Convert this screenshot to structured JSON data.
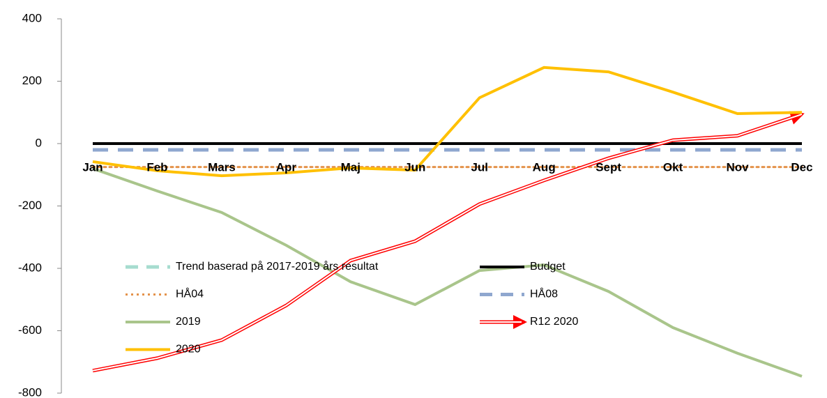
{
  "chart_data": {
    "type": "line",
    "categories": [
      "Jan",
      "Feb",
      "Mars",
      "Apr",
      "Maj",
      "Jun",
      "Jul",
      "Aug",
      "Sept",
      "Okt",
      "Nov",
      "Dec"
    ],
    "ylim": [
      -800,
      400
    ],
    "yticks": [
      -800,
      -600,
      -400,
      -200,
      0,
      200,
      400
    ],
    "series": [
      {
        "name": "Trend baserad på 2017-2019 års resultat",
        "color": "#a6dccf",
        "style": "dashed",
        "values": [
          null,
          null,
          null,
          null,
          null,
          null,
          null,
          null,
          null,
          null,
          null,
          null
        ]
      },
      {
        "name": "Budget",
        "color": "#000000",
        "style": "solid",
        "values": [
          0,
          0,
          0,
          0,
          0,
          0,
          0,
          0,
          0,
          0,
          0,
          0
        ]
      },
      {
        "name": "HÅ04",
        "color": "#e4924a",
        "style": "dotted",
        "values": [
          -75,
          -75,
          -75,
          -75,
          -75,
          -75,
          -75,
          -75,
          -75,
          -75,
          -75,
          -75
        ]
      },
      {
        "name": "HÅ08",
        "color": "#8fa7cf",
        "style": "dashed",
        "values": [
          -20,
          -20,
          -20,
          -20,
          -20,
          -20,
          -20,
          -20,
          -20,
          -20,
          -20,
          -20
        ]
      },
      {
        "name": "2019",
        "color": "#a9c58b",
        "style": "solid",
        "values": [
          -80,
          -152,
          -221,
          -326,
          -443,
          -516,
          -407,
          -389,
          -474,
          -590,
          -672,
          -746
        ]
      },
      {
        "name": "R12 2020",
        "color": "#ff0000",
        "style": "double-arrow",
        "values": [
          -728,
          -688,
          -630,
          -519,
          -375,
          -313,
          -194,
          -118,
          -47,
          11,
          25,
          94
        ]
      },
      {
        "name": "2020",
        "color": "#ffc000",
        "style": "solid",
        "values": [
          -58,
          -87,
          -103,
          -94,
          -78,
          -85,
          147,
          244,
          230,
          165,
          96,
          100
        ]
      }
    ]
  }
}
